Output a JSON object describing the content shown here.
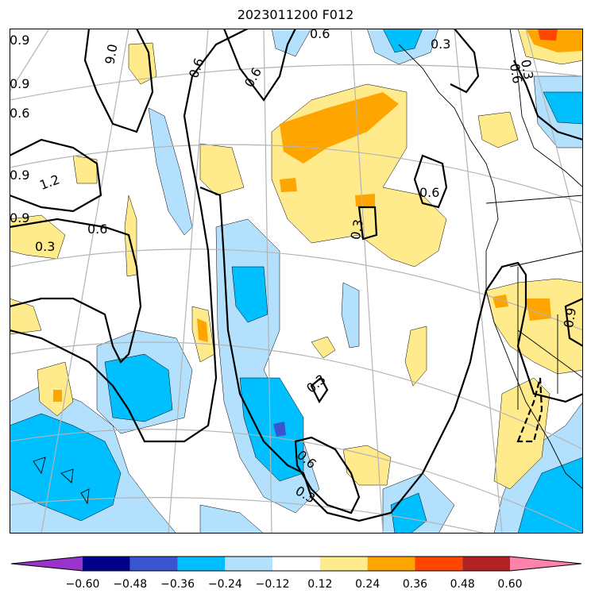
{
  "title": "2023011200 F012",
  "colors": {
    "land_coast": "#000000",
    "graticule": "#b4b4b4",
    "contour": "#000000",
    "fill_lt_blue": "#b3e0fd",
    "fill_blue": "#00bfff",
    "fill_dark_blue": "#3a55d0",
    "fill_lt_yellow": "#ffeb8c",
    "fill_orange": "#ffa500",
    "fill_red": "#ff4500"
  },
  "colorbar": {
    "bins": [
      {
        "color": "#9933cc"
      },
      {
        "color": "#00008b"
      },
      {
        "color": "#3a55d0"
      },
      {
        "color": "#00bfff"
      },
      {
        "color": "#b3e0fd"
      },
      {
        "color": "#ffffff"
      },
      {
        "color": "#ffeb8c"
      },
      {
        "color": "#ffa500"
      },
      {
        "color": "#ff4500"
      },
      {
        "color": "#b22222"
      },
      {
        "color": "#ff82ab"
      }
    ],
    "tick_labels": [
      "−0.60",
      "−0.48",
      "−0.36",
      "−0.24",
      "−0.12",
      "0.12",
      "0.24",
      "0.36",
      "0.48",
      "0.60"
    ]
  },
  "contour_labels": [
    {
      "text": "0.9"
    },
    {
      "text": "9.0"
    },
    {
      "text": "0.6"
    },
    {
      "text": "0.3"
    },
    {
      "text": "0.6"
    },
    {
      "text": "0.6"
    },
    {
      "text": "0.3"
    },
    {
      "text": "0.9"
    },
    {
      "text": "0.6"
    },
    {
      "text": "0.9"
    },
    {
      "text": "1.2"
    },
    {
      "text": "0.9"
    },
    {
      "text": "0.6"
    },
    {
      "text": "0.3"
    },
    {
      "text": "0.6"
    },
    {
      "text": "0.3"
    },
    {
      "text": "0.3"
    },
    {
      "text": "0.6"
    },
    {
      "text": "0.3"
    },
    {
      "text": "0.9"
    },
    {
      "text": "0.6"
    }
  ]
}
